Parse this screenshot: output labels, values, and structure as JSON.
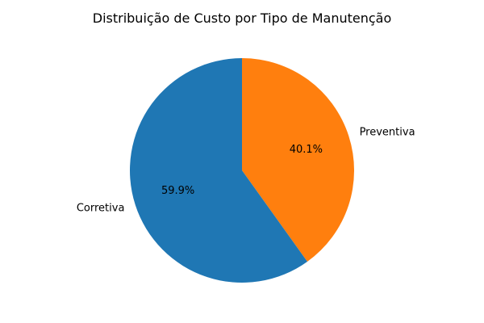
{
  "chart_data": {
    "type": "pie",
    "title": "Distribuição de Custo por Tipo de Manutenção",
    "slices": [
      {
        "label": "Preventiva",
        "value": 40.1,
        "pct_label": "40.1%",
        "color": "#ff7f0e"
      },
      {
        "label": "Corretiva",
        "value": 59.9,
        "pct_label": "59.9%",
        "color": "#1f77b4"
      }
    ],
    "start_angle_deg": 90,
    "direction": "clockwise"
  }
}
